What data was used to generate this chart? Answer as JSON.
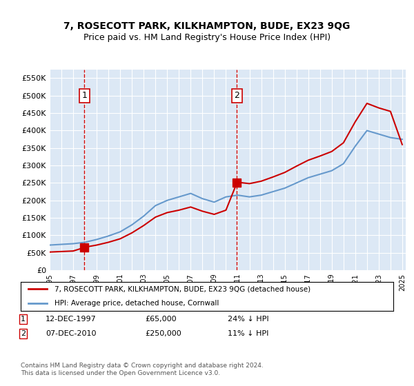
{
  "title": "7, ROSECOTT PARK, KILKHAMPTON, BUDE, EX23 9QG",
  "subtitle": "Price paid vs. HM Land Registry's House Price Index (HPI)",
  "background_color": "#e8f0f8",
  "plot_bg_color": "#dce8f5",
  "legend_label_red": "7, ROSECOTT PARK, KILKHAMPTON, BUDE, EX23 9QG (detached house)",
  "legend_label_blue": "HPI: Average price, detached house, Cornwall",
  "annotation1_label": "1",
  "annotation1_date": "12-DEC-1997",
  "annotation1_price": "£65,000",
  "annotation1_hpi": "24% ↓ HPI",
  "annotation2_label": "2",
  "annotation2_date": "07-DEC-2010",
  "annotation2_price": "£250,000",
  "annotation2_hpi": "11% ↓ HPI",
  "footer": "Contains HM Land Registry data © Crown copyright and database right 2024.\nThis data is licensed under the Open Government Licence v3.0.",
  "red_color": "#cc0000",
  "blue_color": "#6699cc",
  "vline_color": "#cc0000",
  "marker_color": "#cc0000",
  "ylim": [
    0,
    575000
  ],
  "yticks": [
    0,
    50000,
    100000,
    150000,
    200000,
    250000,
    300000,
    350000,
    400000,
    450000,
    500000,
    550000
  ],
  "ytick_labels": [
    "£0",
    "£50K",
    "£100K",
    "£150K",
    "£200K",
    "£250K",
    "£300K",
    "£350K",
    "£400K",
    "£450K",
    "£500K",
    "£550K"
  ],
  "hpi_years": [
    1995,
    1996,
    1997,
    1998,
    1999,
    2000,
    2001,
    2002,
    2003,
    2004,
    2005,
    2006,
    2007,
    2008,
    2009,
    2010,
    2011,
    2012,
    2013,
    2014,
    2015,
    2016,
    2017,
    2018,
    2019,
    2020,
    2021,
    2022,
    2023,
    2024,
    2025
  ],
  "hpi_values": [
    72000,
    74000,
    76000,
    80000,
    88000,
    98000,
    110000,
    130000,
    155000,
    185000,
    200000,
    210000,
    220000,
    205000,
    195000,
    210000,
    215000,
    210000,
    215000,
    225000,
    235000,
    250000,
    265000,
    275000,
    285000,
    305000,
    355000,
    400000,
    390000,
    380000,
    375000
  ],
  "price_paid_dates": [
    1997.95,
    2010.93
  ],
  "price_paid_values": [
    65000,
    250000
  ],
  "red_line_x": [
    1995,
    1996,
    1997,
    1997.95,
    1998,
    1999,
    2000,
    2001,
    2002,
    2003,
    2004,
    2005,
    2006,
    2007,
    2008,
    2009,
    2010,
    2010.93,
    2011,
    2012,
    2013,
    2014,
    2015,
    2016,
    2017,
    2018,
    2019,
    2020,
    2021,
    2022,
    2023,
    2024,
    2025
  ],
  "red_line_y": [
    52000,
    53500,
    55000,
    65000,
    66000,
    72000,
    80000,
    90000,
    107000,
    128000,
    152000,
    165000,
    172000,
    181000,
    169000,
    160000,
    172000,
    250000,
    252000,
    248000,
    255000,
    267000,
    280000,
    298000,
    315000,
    327000,
    340000,
    365000,
    425000,
    478000,
    465000,
    455000,
    360000
  ]
}
